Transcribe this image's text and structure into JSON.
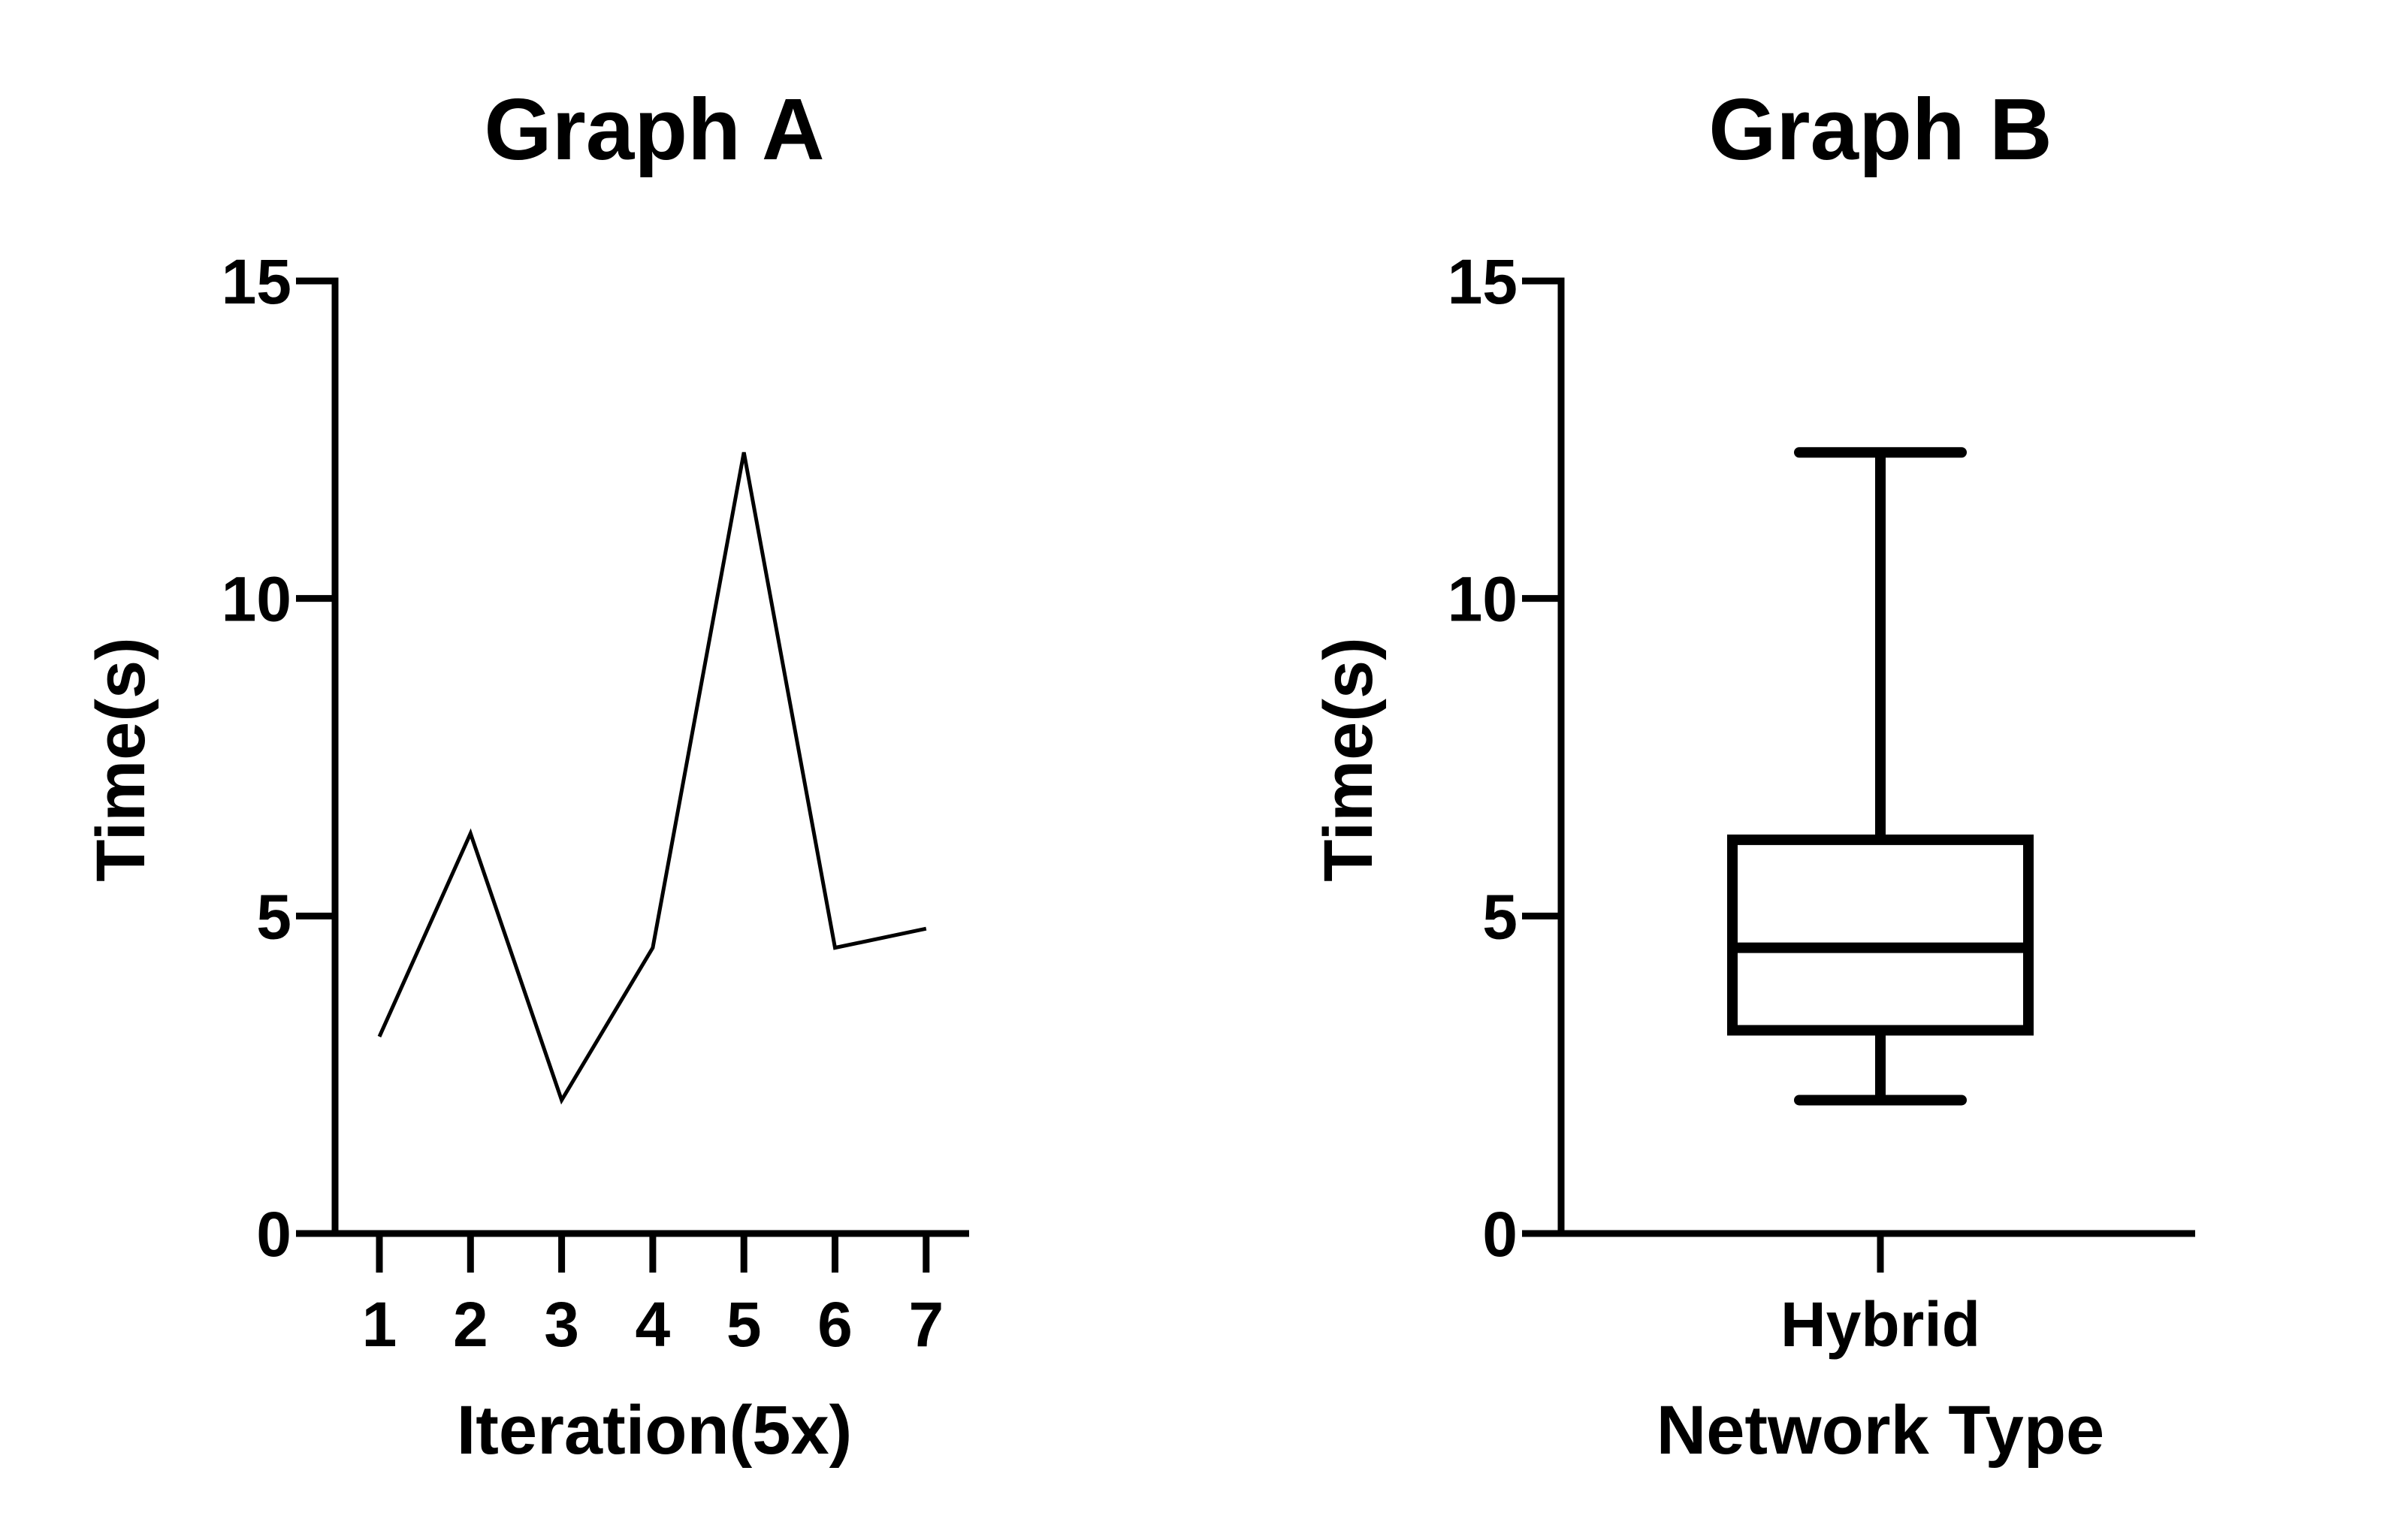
{
  "chart_data": [
    {
      "type": "line",
      "title": "Graph A",
      "xlabel": "Iteration(5x)",
      "ylabel": "Time(s)",
      "x": [
        1,
        2,
        3,
        4,
        5,
        6,
        7
      ],
      "xticks": [
        "1",
        "2",
        "3",
        "4",
        "5",
        "6",
        "7"
      ],
      "series": [
        {
          "values": [
            3.1,
            6.3,
            2.1,
            4.5,
            12.3,
            4.5,
            4.8
          ]
        }
      ],
      "ylim": [
        0,
        15
      ],
      "yticks": [
        "0",
        "5",
        "10",
        "15"
      ],
      "grid": false,
      "color": "#000000"
    },
    {
      "type": "box",
      "title": "Graph B",
      "xlabel": "Network Type",
      "ylabel": "Time(s)",
      "categories": [
        "Hybrid"
      ],
      "boxes": [
        {
          "min": 2.1,
          "q1": 3.2,
          "median": 4.5,
          "q3": 6.2,
          "max": 12.3
        }
      ],
      "ylim": [
        0,
        15
      ],
      "yticks": [
        "0",
        "5",
        "10",
        "15"
      ],
      "grid": false,
      "color": "#000000"
    }
  ]
}
